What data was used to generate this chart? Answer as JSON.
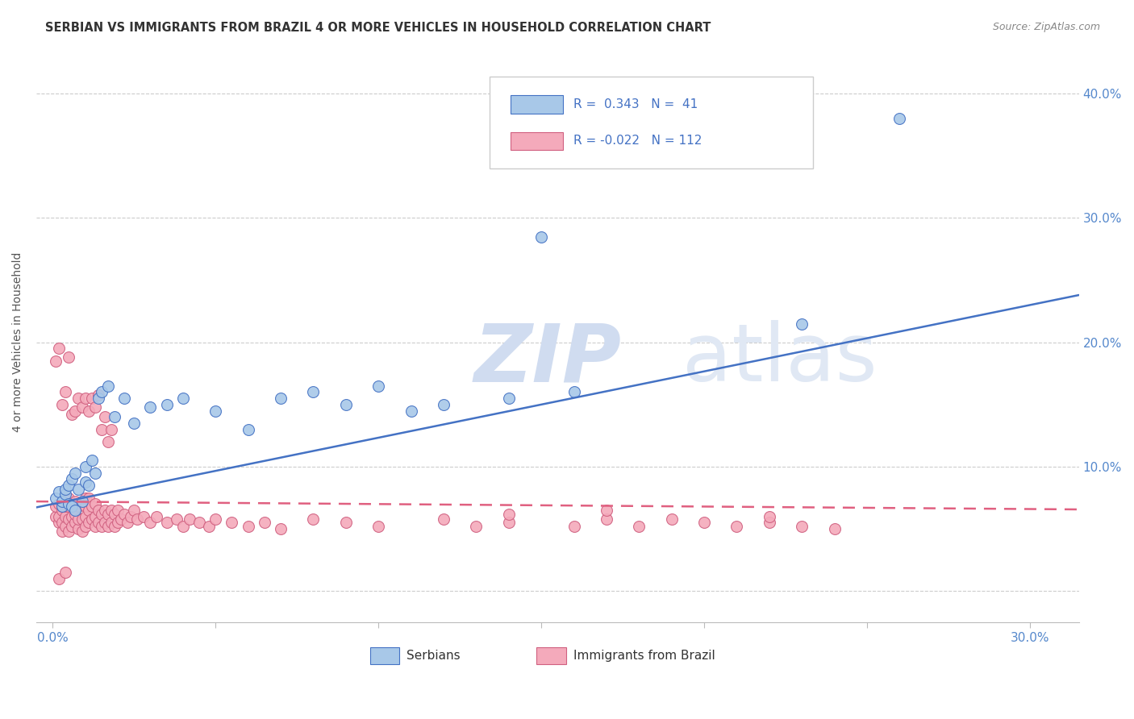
{
  "title": "SERBIAN VS IMMIGRANTS FROM BRAZIL 4 OR MORE VEHICLES IN HOUSEHOLD CORRELATION CHART",
  "source": "Source: ZipAtlas.com",
  "xlim": [
    -0.005,
    0.315
  ],
  "ylim": [
    -0.025,
    0.425
  ],
  "ylabel": "4 or more Vehicles in Household",
  "R_serbian": 0.343,
  "N_serbian": 41,
  "R_brazil": -0.022,
  "N_brazil": 112,
  "color_serbian": "#A8C8E8",
  "color_brazil": "#F4AABB",
  "color_serbian_line": "#4472C4",
  "color_brazil_line": "#E06080",
  "watermark_zip": "ZIP",
  "watermark_atlas": "atlas",
  "serbian_x": [
    0.001,
    0.002,
    0.003,
    0.003,
    0.004,
    0.004,
    0.005,
    0.005,
    0.006,
    0.006,
    0.007,
    0.007,
    0.008,
    0.009,
    0.01,
    0.01,
    0.011,
    0.012,
    0.013,
    0.014,
    0.015,
    0.017,
    0.019,
    0.022,
    0.025,
    0.03,
    0.035,
    0.04,
    0.05,
    0.06,
    0.07,
    0.08,
    0.09,
    0.1,
    0.11,
    0.12,
    0.14,
    0.16,
    0.23,
    0.26,
    0.15
  ],
  "serbian_y": [
    0.075,
    0.08,
    0.068,
    0.072,
    0.078,
    0.082,
    0.07,
    0.085,
    0.068,
    0.09,
    0.065,
    0.095,
    0.082,
    0.072,
    0.1,
    0.088,
    0.085,
    0.105,
    0.095,
    0.155,
    0.16,
    0.165,
    0.14,
    0.155,
    0.135,
    0.148,
    0.15,
    0.155,
    0.145,
    0.13,
    0.155,
    0.16,
    0.15,
    0.165,
    0.145,
    0.15,
    0.155,
    0.16,
    0.215,
    0.38,
    0.285
  ],
  "brazil_x": [
    0.001,
    0.001,
    0.002,
    0.002,
    0.002,
    0.003,
    0.003,
    0.003,
    0.003,
    0.004,
    0.004,
    0.004,
    0.005,
    0.005,
    0.005,
    0.005,
    0.006,
    0.006,
    0.006,
    0.007,
    0.007,
    0.007,
    0.008,
    0.008,
    0.008,
    0.009,
    0.009,
    0.01,
    0.01,
    0.01,
    0.01,
    0.011,
    0.011,
    0.011,
    0.012,
    0.012,
    0.013,
    0.013,
    0.013,
    0.014,
    0.014,
    0.015,
    0.015,
    0.016,
    0.016,
    0.017,
    0.017,
    0.018,
    0.018,
    0.019,
    0.019,
    0.02,
    0.02,
    0.021,
    0.022,
    0.023,
    0.024,
    0.025,
    0.026,
    0.028,
    0.03,
    0.032,
    0.035,
    0.038,
    0.04,
    0.042,
    0.045,
    0.048,
    0.05,
    0.055,
    0.06,
    0.065,
    0.07,
    0.08,
    0.09,
    0.1,
    0.12,
    0.13,
    0.14,
    0.16,
    0.17,
    0.18,
    0.19,
    0.2,
    0.21,
    0.22,
    0.23,
    0.24,
    0.001,
    0.002,
    0.003,
    0.004,
    0.005,
    0.006,
    0.007,
    0.008,
    0.009,
    0.01,
    0.011,
    0.012,
    0.013,
    0.014,
    0.015,
    0.016,
    0.017,
    0.018,
    0.003,
    0.14,
    0.17,
    0.22,
    0.002,
    0.004
  ],
  "brazil_y": [
    0.06,
    0.068,
    0.055,
    0.06,
    0.07,
    0.048,
    0.055,
    0.065,
    0.072,
    0.052,
    0.06,
    0.068,
    0.048,
    0.058,
    0.068,
    0.075,
    0.052,
    0.06,
    0.07,
    0.055,
    0.062,
    0.072,
    0.05,
    0.058,
    0.068,
    0.048,
    0.058,
    0.052,
    0.06,
    0.068,
    0.075,
    0.055,
    0.065,
    0.075,
    0.058,
    0.068,
    0.052,
    0.06,
    0.07,
    0.055,
    0.065,
    0.052,
    0.062,
    0.055,
    0.065,
    0.052,
    0.062,
    0.055,
    0.065,
    0.052,
    0.062,
    0.055,
    0.065,
    0.058,
    0.062,
    0.055,
    0.06,
    0.065,
    0.058,
    0.06,
    0.055,
    0.06,
    0.055,
    0.058,
    0.052,
    0.058,
    0.055,
    0.052,
    0.058,
    0.055,
    0.052,
    0.055,
    0.05,
    0.058,
    0.055,
    0.052,
    0.058,
    0.052,
    0.055,
    0.052,
    0.058,
    0.052,
    0.058,
    0.055,
    0.052,
    0.055,
    0.052,
    0.05,
    0.185,
    0.195,
    0.15,
    0.16,
    0.188,
    0.142,
    0.145,
    0.155,
    0.148,
    0.155,
    0.145,
    0.155,
    0.148,
    0.158,
    0.13,
    0.14,
    0.12,
    0.13,
    0.068,
    0.062,
    0.065,
    0.06,
    0.01,
    0.015
  ]
}
